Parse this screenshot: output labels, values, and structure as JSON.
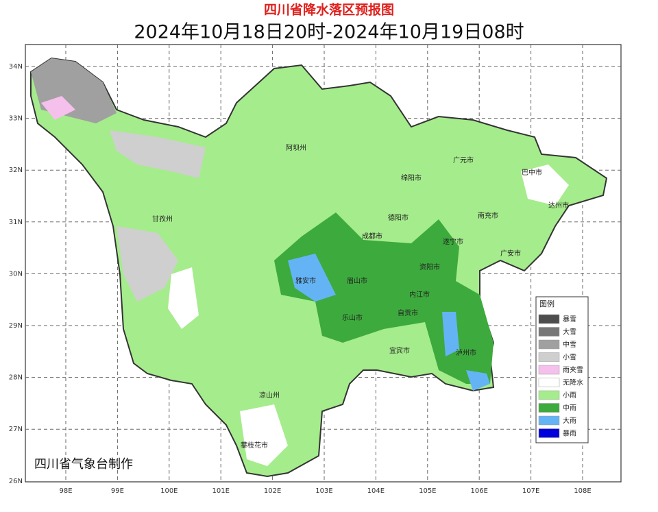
{
  "header": {
    "title": "四川省降水落区预报图",
    "subtitle": "2024年10月18日20时-2024年10月19日08时"
  },
  "map": {
    "lat_labels": [
      "34N",
      "33N",
      "32N",
      "31N",
      "30N",
      "29N",
      "28N",
      "27N",
      "26N"
    ],
    "lon_labels": [
      "98E",
      "99E",
      "100E",
      "101E",
      "102E",
      "103E",
      "104E",
      "105E",
      "106E",
      "107E",
      "108E"
    ],
    "places": [
      "阿坝州",
      "广元市",
      "巴中市",
      "绵阳市",
      "达州市",
      "甘孜州",
      "德阳市",
      "南充市",
      "成都市",
      "遂宁市",
      "广安市",
      "雅安市",
      "眉山市",
      "资阳市",
      "内江市",
      "乐山市",
      "自贡市",
      "宜宾市",
      "泸州市",
      "凉山州",
      "攀枝花市"
    ]
  },
  "legend": {
    "title": "图例",
    "items": [
      "暴雪",
      "大雪",
      "中雪",
      "小雪",
      "雨夹雪",
      "无降水",
      "小雨",
      "中雨",
      "大雨",
      "暴雨"
    ]
  },
  "footer": "四川省气象台制作"
}
